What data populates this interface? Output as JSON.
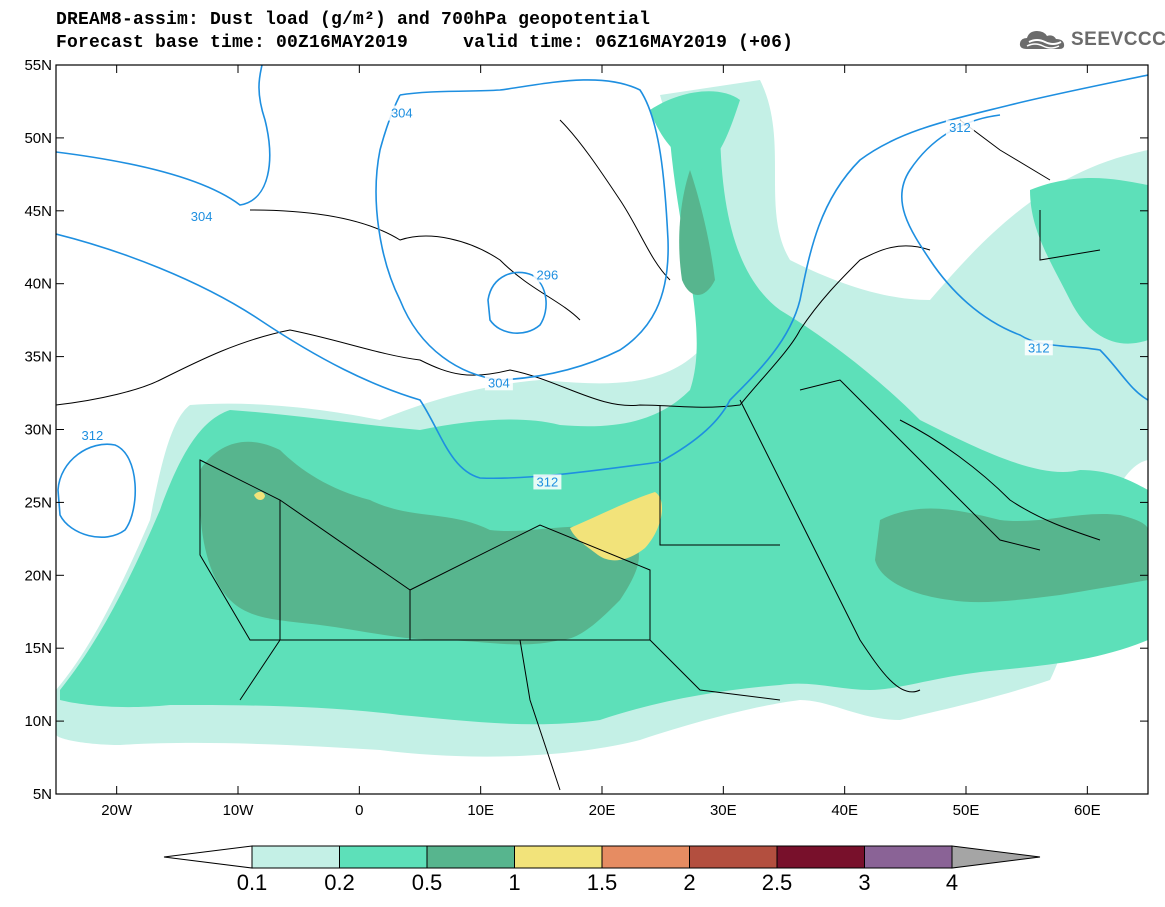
{
  "title": {
    "line1": "DREAM8-assim: Dust load (g/m²) and 700hPa geopotential",
    "line2": "Forecast base time: 00Z16MAY2019     valid time: 06Z16MAY2019 (+06)"
  },
  "logo": {
    "text": "SEEVCCC",
    "icon": "cloud-icon"
  },
  "map": {
    "lon_range": [
      -25,
      65
    ],
    "lat_range": [
      5,
      55
    ],
    "lat_labels": [
      "55N",
      "50N",
      "45N",
      "40N",
      "35N",
      "30N",
      "25N",
      "20N",
      "15N",
      "10N",
      "5N"
    ],
    "lon_labels": [
      "20W",
      "10W",
      "0",
      "10E",
      "20E",
      "30E",
      "40E",
      "50E",
      "60E"
    ],
    "contour_labels": [
      {
        "text": "304",
        "lon": 3.5,
        "lat": 51.6
      },
      {
        "text": "304",
        "lon": -13,
        "lat": 44.5
      },
      {
        "text": "312",
        "lon": 49.5,
        "lat": 50.6
      },
      {
        "text": "296",
        "lon": 15.5,
        "lat": 40.5
      },
      {
        "text": "304",
        "lon": 11.5,
        "lat": 33.1
      },
      {
        "text": "312",
        "lon": -22,
        "lat": 29.5
      },
      {
        "text": "312",
        "lon": 15.5,
        "lat": 26.3
      },
      {
        "text": "312",
        "lon": 56,
        "lat": 35.5
      }
    ],
    "colors": {
      "contour": "#1e8fe0",
      "coast": "#000000"
    }
  },
  "colorbar": {
    "labels": [
      "0.1",
      "0.2",
      "0.5",
      "1",
      "1.5",
      "2",
      "2.5",
      "3",
      "4"
    ],
    "colors": [
      "#c4f0e6",
      "#5de0b9",
      "#57b58e",
      "#f2e37a",
      "#e68c62",
      "#b34f3f",
      "#78102b",
      "#8a6396"
    ],
    "under_color": "#ffffff",
    "over_color": "#a5a5a5"
  }
}
